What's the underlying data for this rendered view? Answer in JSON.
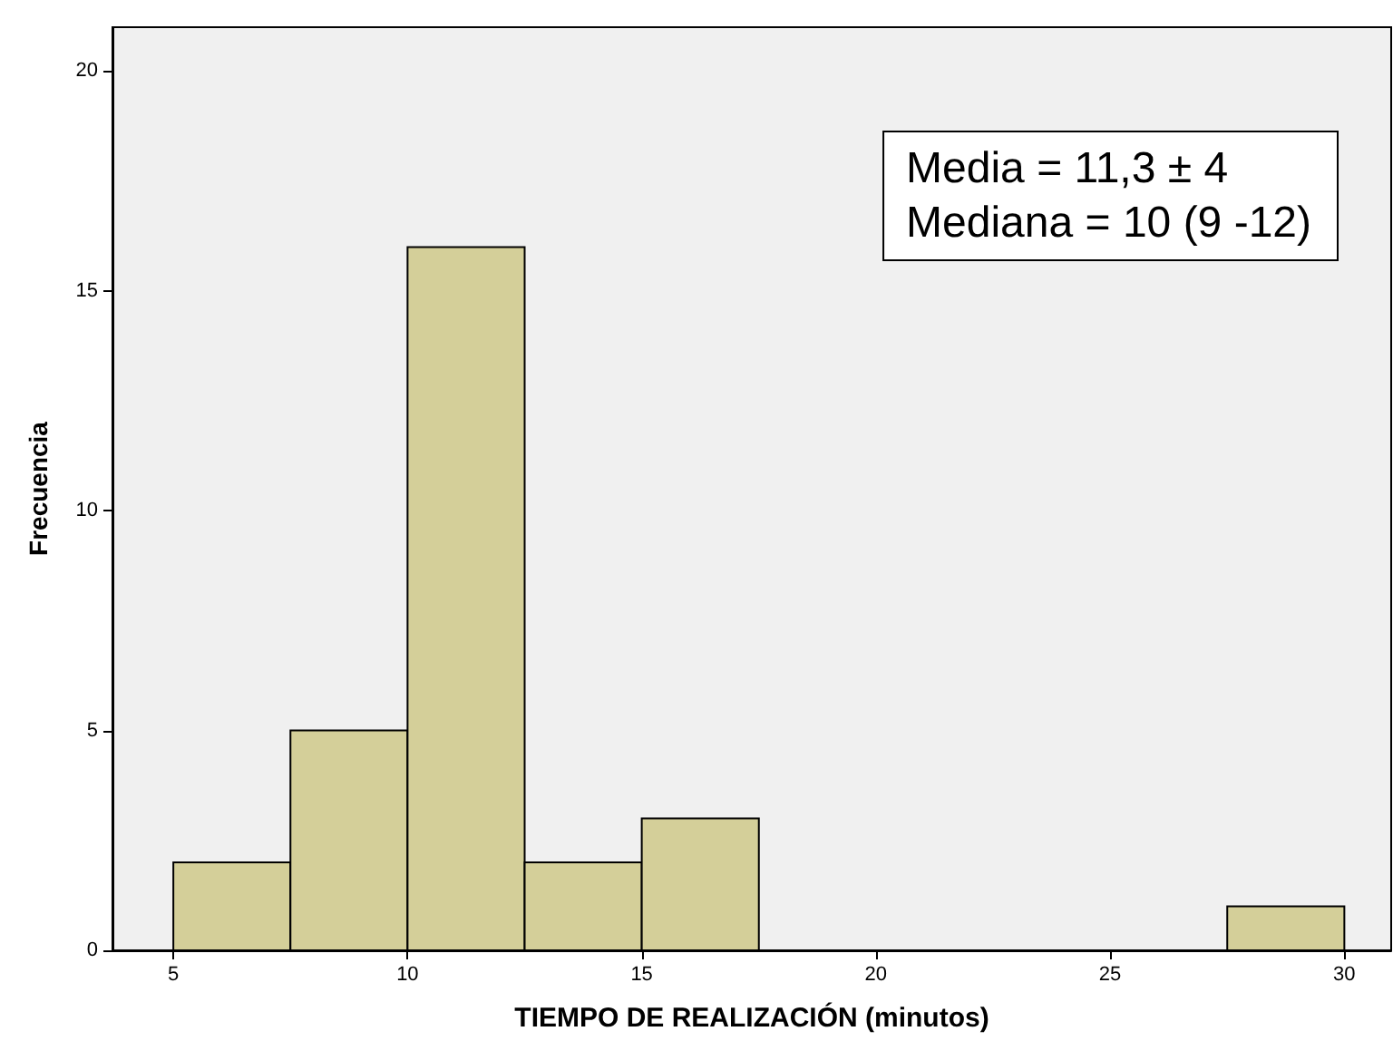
{
  "chart_data": {
    "type": "histogram",
    "xlabel": "TIEMPO DE REALIZACIÓN (minutos)",
    "ylabel": "Frecuencia",
    "bins": [
      5,
      7.5,
      10,
      12.5,
      15,
      17.5,
      20,
      22.5,
      25,
      27.5,
      30
    ],
    "values": [
      2,
      5,
      16,
      2,
      3,
      0,
      0,
      0,
      0,
      1
    ],
    "color": "#d4cf99",
    "xlim": [
      3.7,
      31
    ],
    "xticks": [
      5,
      10,
      15,
      20,
      25,
      30
    ],
    "ylim": [
      0,
      21
    ],
    "yticks": [
      0,
      5,
      10,
      15,
      20
    ],
    "grid": false,
    "annotations": [
      "Media = 11,3 ± 4",
      "Mediana = 10 (9 -12)"
    ]
  }
}
